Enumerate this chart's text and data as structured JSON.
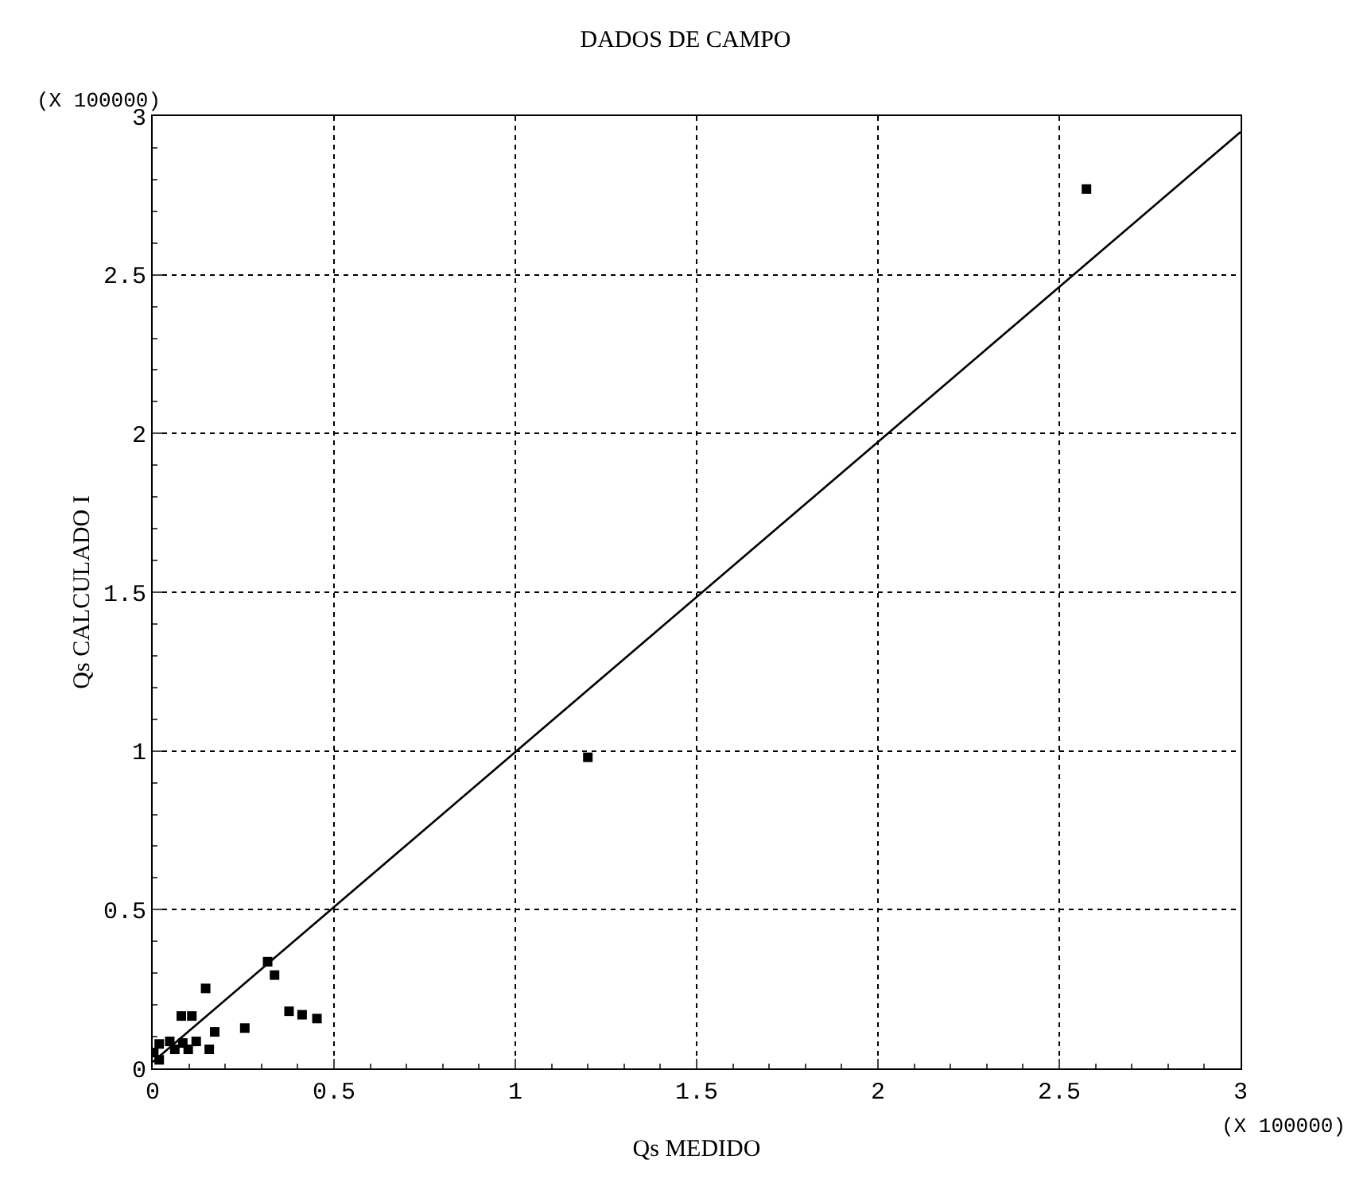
{
  "chart_data": {
    "type": "scatter",
    "title": "DADOS DE CAMPO",
    "xlabel": "Qs MEDIDO",
    "ylabel": "Qs CALCULADO I",
    "annotations": [
      "(X 100000)",
      "(X 100000)"
    ],
    "xlim": [
      0,
      3
    ],
    "xticks": [
      0,
      0.5,
      1,
      1.5,
      2,
      2.5,
      3
    ],
    "ylim": [
      0,
      3
    ],
    "yticks": [
      0,
      0.5,
      1,
      1.5,
      2,
      2.5,
      3
    ],
    "grid": true,
    "series": [
      {
        "marker": "square",
        "color": "#000000",
        "x": [
          2.575,
          1.2,
          0.317,
          0.336,
          0.146,
          0.376,
          0.412,
          0.453,
          0.254,
          0.079,
          0.108,
          0.171,
          0.156,
          0.018,
          0.047,
          0.083,
          0.12,
          0.098,
          0.018,
          0.003,
          0.061
        ],
        "values": [
          2.77,
          0.98,
          0.336,
          0.294,
          0.252,
          0.18,
          0.169,
          0.157,
          0.127,
          0.165,
          0.165,
          0.115,
          0.06,
          0.077,
          0.085,
          0.08,
          0.085,
          0.06,
          0.027,
          0.05,
          0.06
        ]
      },
      {
        "type": "line",
        "marker": "none",
        "color": "#000000",
        "x": [
          0,
          3
        ],
        "values": [
          0.02,
          2.95
        ]
      }
    ]
  }
}
